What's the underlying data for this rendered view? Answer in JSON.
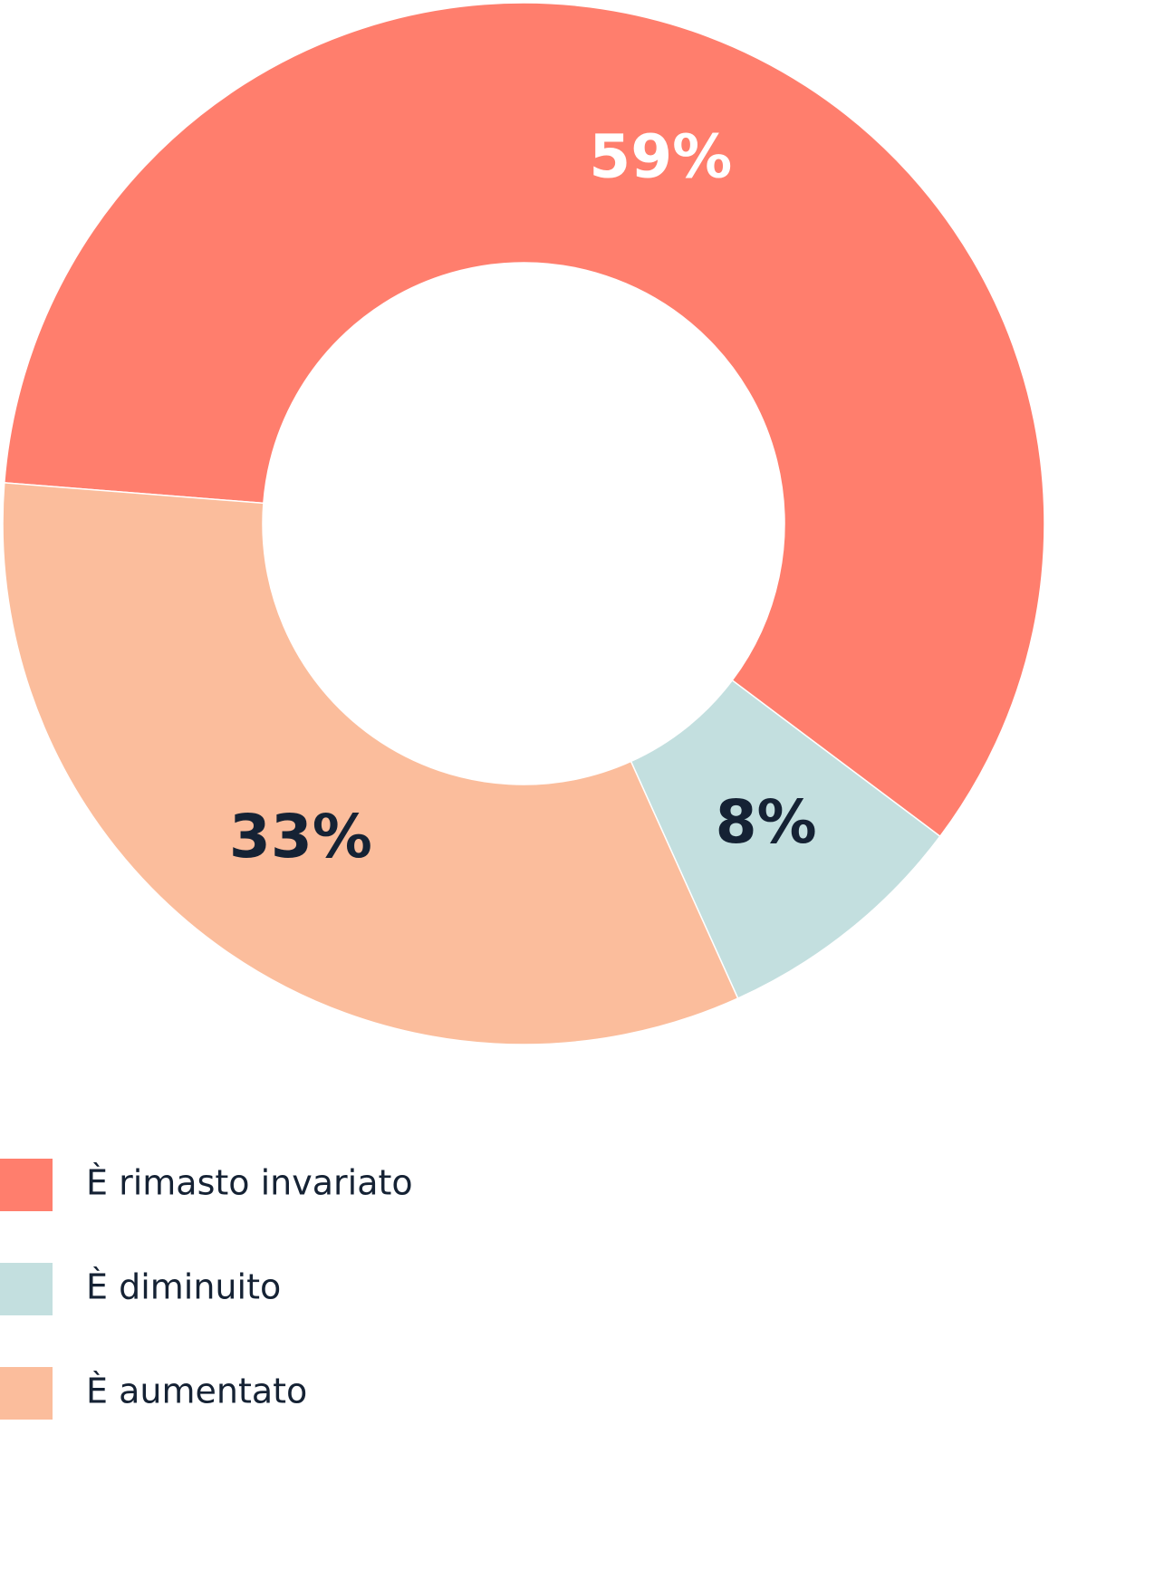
{
  "chart_data": {
    "type": "donut",
    "categories": [
      "È rimasto invariato",
      "È diminuito",
      "È aumentato"
    ],
    "values": [
      59,
      8,
      33
    ],
    "value_labels": [
      "59%",
      "8%",
      "33%"
    ],
    "colors": [
      "#ff7e6d",
      "#c3dfdf",
      "#fbbd9c"
    ]
  }
}
